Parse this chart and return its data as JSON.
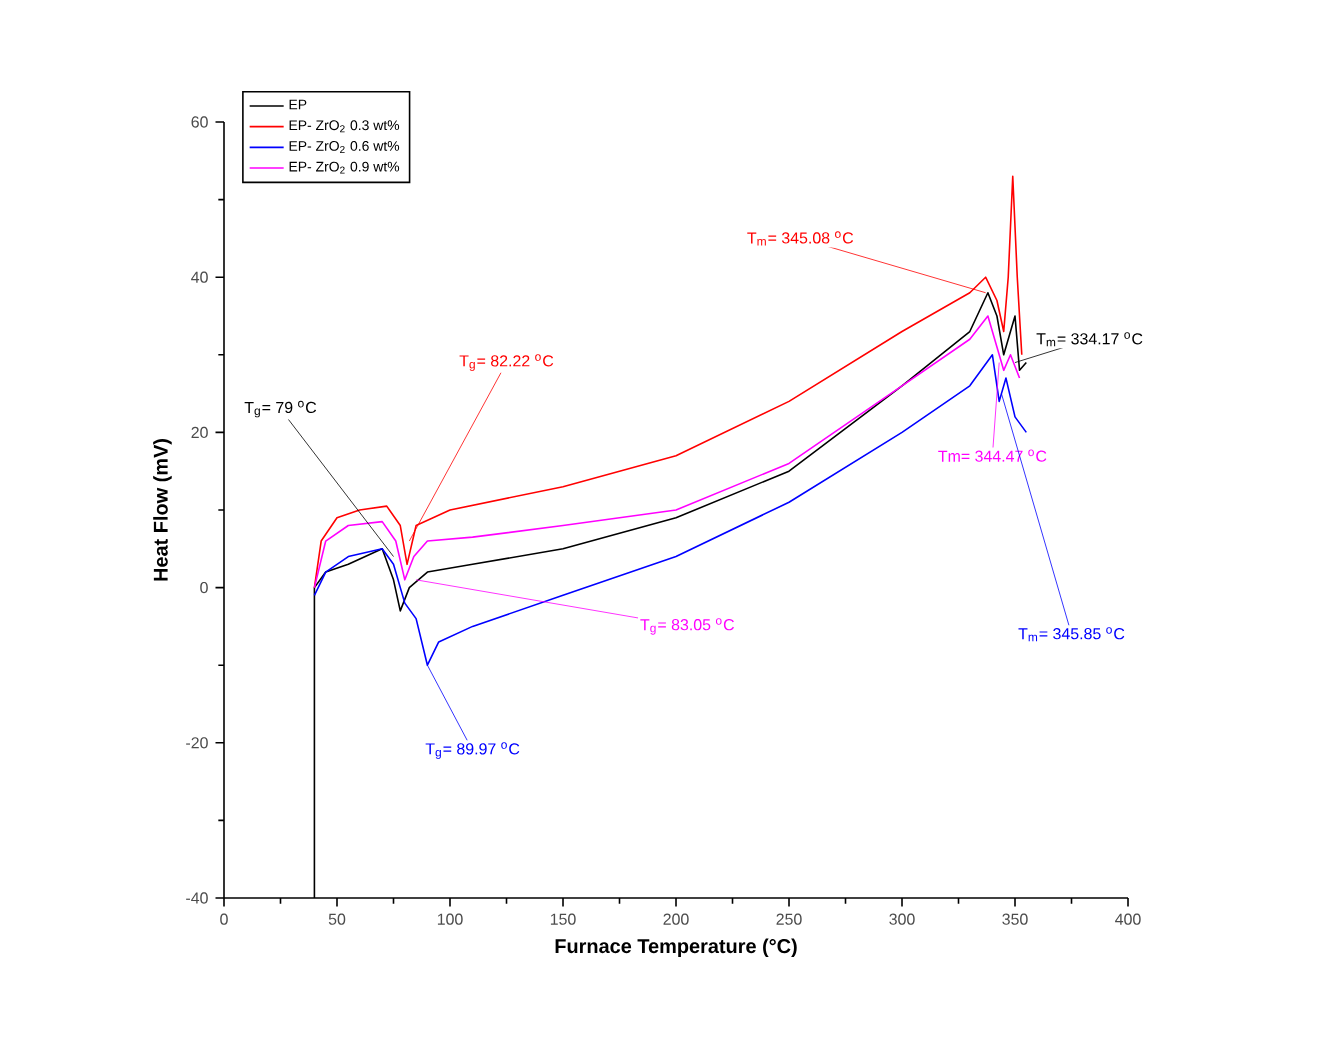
{
  "chart_data": {
    "type": "line",
    "xlabel": "Furnace Temperature (°C)",
    "ylabel": "Heat Flow (mV)",
    "xlim": [
      0,
      400
    ],
    "ylim": [
      -40,
      60
    ],
    "xticks": [
      0,
      50,
      100,
      150,
      200,
      250,
      300,
      350,
      400
    ],
    "yticks": [
      -40,
      -20,
      0,
      20,
      40,
      60
    ],
    "grid": false,
    "legend": "top left",
    "marker": "none",
    "line_style": "solid",
    "series": [
      {
        "name": "EP",
        "color": "#000000",
        "x": [
          40,
          40,
          45,
          55,
          70,
          75,
          78,
          82,
          90,
          110,
          150,
          200,
          250,
          300,
          330,
          338,
          342,
          345,
          348,
          350,
          352,
          355
        ],
        "values": [
          -40,
          0,
          2,
          3,
          5,
          1,
          -3,
          0,
          2,
          3,
          5,
          9,
          15,
          26,
          33,
          38,
          35,
          30,
          33,
          35,
          28,
          29
        ]
      },
      {
        "name": "EP- ZrO$_{2}$ 0.3 wt%",
        "color": "#ff0000",
        "x": [
          40,
          43,
          50,
          60,
          72,
          78,
          81,
          85,
          100,
          150,
          200,
          250,
          300,
          330,
          337,
          342,
          345,
          347,
          349,
          351,
          353
        ],
        "values": [
          0,
          6,
          9,
          10,
          10.5,
          8,
          3,
          8,
          10,
          13,
          17,
          24,
          33,
          38,
          40,
          37,
          33,
          40,
          53,
          40,
          30
        ]
      },
      {
        "name": "EP- ZrO$_{2}$ 0.6 wt%",
        "color": "#0000ff",
        "x": [
          40,
          45,
          55,
          70,
          75,
          80,
          85,
          90,
          95,
          110,
          150,
          200,
          250,
          300,
          330,
          340,
          343,
          346,
          350,
          355
        ],
        "values": [
          -1,
          2,
          4,
          5,
          3,
          -2,
          -4,
          -10,
          -7,
          -5,
          -1,
          4,
          11,
          20,
          26,
          30,
          24,
          27,
          22,
          20
        ]
      },
      {
        "name": "EP- ZrO$_{2}$ 0.9 wt%",
        "color": "#ff00ff",
        "x": [
          40,
          45,
          55,
          70,
          76,
          80,
          84,
          90,
          110,
          150,
          200,
          250,
          300,
          330,
          338,
          342,
          345,
          348,
          352
        ],
        "values": [
          0,
          6,
          8,
          8.5,
          6,
          1,
          4,
          6,
          6.5,
          8,
          10,
          16,
          26,
          32,
          35,
          31,
          28,
          30,
          27
        ]
      }
    ],
    "annotations": [
      {
        "text": "T$_{g}$= 79 $^{o}$C",
        "x": 75,
        "y": 4
      },
      {
        "text": "T$_{g}$= 82.22 $^{o}$C",
        "x": 82,
        "y": 6
      },
      {
        "text": "T$_{g}$= 89.97 $^{o}$C",
        "x": 90,
        "y": -10
      },
      {
        "text": "T$_{g}$= 83.05 $^{o}$C",
        "x": 85,
        "y": 1
      },
      {
        "text": "T$_{m}$= 345.08 $^{o}$C",
        "x": 337,
        "y": 38
      },
      {
        "text": "T$_{m}$= 334.17 $^{o}$C",
        "x": 350,
        "y": 29
      },
      {
        "text": "Tm= 344.47 $^{o}$C",
        "x": 343,
        "y": 29
      },
      {
        "text": "T$_{m}$= 345.85 $^{o}$C",
        "x": 344,
        "y": 25
      }
    ]
  }
}
